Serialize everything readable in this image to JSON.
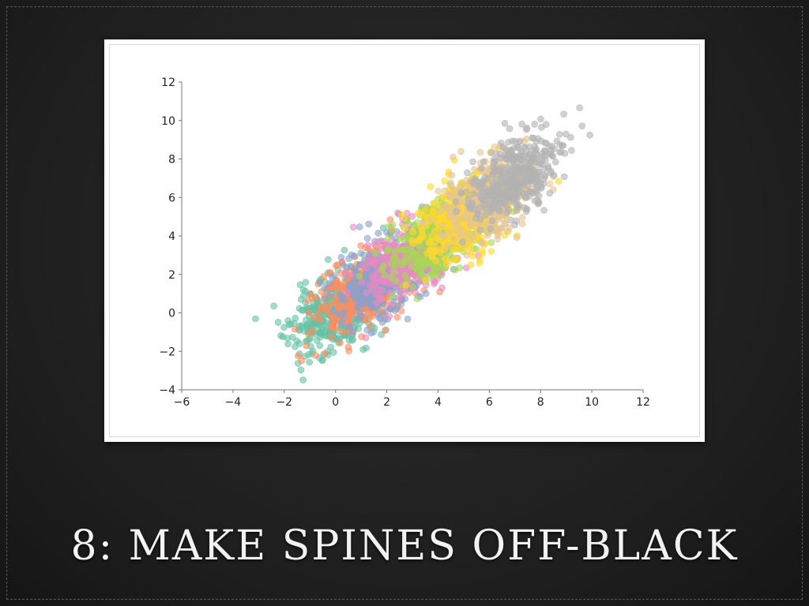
{
  "slide": {
    "title": "8: MAKE SPINES OFF-BLACK"
  },
  "chart_data": {
    "type": "scatter",
    "title": "",
    "xlabel": "",
    "ylabel": "",
    "xlim": [
      -6,
      12
    ],
    "ylim": [
      -4,
      12
    ],
    "xticks": [
      -6,
      -4,
      -2,
      0,
      2,
      4,
      6,
      8,
      10,
      12
    ],
    "yticks": [
      -4,
      -2,
      0,
      2,
      4,
      6,
      8,
      10,
      12
    ],
    "grid": false,
    "legend": "none",
    "spine_color": "#777777",
    "series": [
      {
        "color": "#66c2a5",
        "center": [
          0,
          0
        ],
        "n": 400,
        "seed": 11
      },
      {
        "color": "#fc8d62",
        "center": [
          1,
          1
        ],
        "n": 400,
        "seed": 23
      },
      {
        "color": "#8da0cb",
        "center": [
          2,
          2
        ],
        "n": 400,
        "seed": 37
      },
      {
        "color": "#e78ac3",
        "center": [
          3,
          3
        ],
        "n": 400,
        "seed": 41
      },
      {
        "color": "#a6d854",
        "center": [
          4,
          4
        ],
        "n": 400,
        "seed": 53
      },
      {
        "color": "#ffd92f",
        "center": [
          5,
          5
        ],
        "n": 400,
        "seed": 67
      },
      {
        "color": "#e5c494",
        "center": [
          6,
          6
        ],
        "n": 400,
        "seed": 79
      },
      {
        "color": "#b3b3b3",
        "center": [
          7,
          7
        ],
        "n": 400,
        "seed": 97
      }
    ],
    "spread": {
      "sx": 0.9,
      "sy": 1.1,
      "corr": 0.45
    }
  }
}
